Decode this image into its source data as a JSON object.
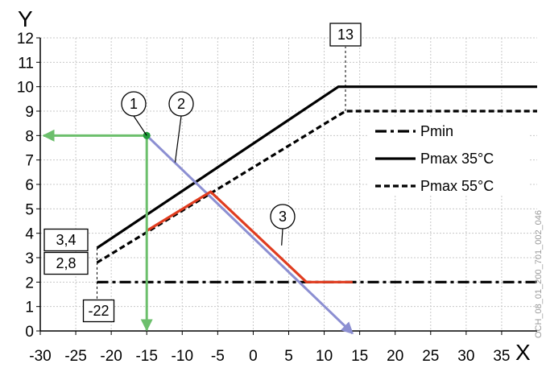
{
  "chart_data": {
    "type": "line",
    "xlabel": "X",
    "ylabel": "Y",
    "xlim": [
      -30,
      40
    ],
    "ylim": [
      0,
      12
    ],
    "x_ticks": [
      -30,
      -25,
      -20,
      -15,
      -10,
      -5,
      0,
      5,
      10,
      15,
      20,
      25,
      30,
      35
    ],
    "y_ticks": [
      0,
      1,
      2,
      3,
      4,
      5,
      6,
      7,
      8,
      9,
      10,
      11,
      12
    ],
    "grid": true,
    "legend_position": "right",
    "series": [
      {
        "name": "Pmin",
        "style": "dash-dot",
        "color": "#000000",
        "points": [
          [
            -22,
            2
          ],
          [
            40,
            2
          ]
        ]
      },
      {
        "name": "Pmax 35°C",
        "style": "solid",
        "color": "#000000",
        "points": [
          [
            -22,
            3.4
          ],
          [
            12,
            10
          ],
          [
            40,
            10
          ]
        ]
      },
      {
        "name": "Pmax 55°C",
        "style": "dashed",
        "color": "#000000",
        "points": [
          [
            -22,
            2.8
          ],
          [
            13,
            9
          ],
          [
            40,
            9
          ]
        ]
      }
    ],
    "demand_line": {
      "color": "#8c8fd2",
      "points": [
        [
          -15,
          8
        ],
        [
          14,
          -0.1
        ]
      ]
    },
    "operating_line": {
      "color": "#e03c1f",
      "points": [
        [
          -15,
          4.1
        ],
        [
          -6,
          5.7
        ],
        [
          7.5,
          2
        ],
        [
          14,
          2
        ]
      ]
    },
    "reading_arrows": {
      "color": "#6cbf6c",
      "point": [
        -15,
        8
      ],
      "horizontal_to_x": -30,
      "vertical_to_y": 0
    },
    "annotations": {
      "boxes": [
        {
          "text": "13",
          "x": 13,
          "y": 9
        },
        {
          "text": "3,4",
          "x": -22,
          "y": 3.4
        },
        {
          "text": "2,8",
          "x": -22,
          "y": 2.8
        },
        {
          "text": "-22",
          "x": -22,
          "y": 2
        }
      ],
      "callouts": [
        {
          "text": "1",
          "x": -15,
          "y": 8
        },
        {
          "text": "2",
          "x": -11,
          "y": 6.9
        },
        {
          "text": "3",
          "x": 4,
          "y": 3.5
        }
      ]
    },
    "side_code": "OCH_08_01_200_701_002_046"
  }
}
